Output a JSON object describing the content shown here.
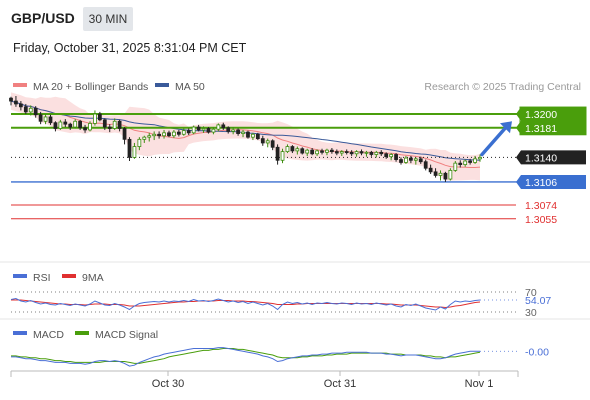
{
  "header": {
    "pair": "GBP/USD",
    "timeframe": "30 MIN",
    "datetime": "Friday, October 31, 2025 8:31:04 PM CET"
  },
  "legend": {
    "ma20_bb": "MA 20 + Bollinger Bands",
    "ma50": "MA 50",
    "credit": "Research © 2025 Trading Central"
  },
  "colors": {
    "green": "#4a9e0c",
    "blue": "#3a6fd0",
    "red": "#e03030",
    "bull": "#3d8c10",
    "bear": "#222222",
    "ma20": "#f08080",
    "ma50": "#3a5a9a",
    "band": "#fadada",
    "rsi": "#4a6fd6",
    "ma9": "#e03030",
    "macd": "#4a6fd6",
    "signal": "#4a9e0c"
  },
  "chart_data": [
    {
      "type": "candlestick",
      "title": "GBP/USD",
      "ylim": [
        1.3045,
        1.3225
      ],
      "x_ticks": [
        "Oct 30",
        "Oct 31",
        "Nov 1"
      ],
      "levels": [
        {
          "value": 1.32,
          "label": "1.3200",
          "kind": "resistance",
          "color": "#4a9e0c"
        },
        {
          "value": 1.3181,
          "label": "1.3181",
          "kind": "resistance",
          "color": "#4a9e0c"
        },
        {
          "value": 1.314,
          "label": "1.3140",
          "kind": "last-price",
          "color": "#222222"
        },
        {
          "value": 1.3106,
          "label": "1.3106",
          "kind": "pivot",
          "color": "#3a6fd0"
        },
        {
          "value": 1.3074,
          "label": "1.3074",
          "kind": "support",
          "color": "#e03030"
        },
        {
          "value": 1.3055,
          "label": "1.3055",
          "kind": "support",
          "color": "#e03030"
        }
      ],
      "arrow": {
        "from": 1.3144,
        "to": 1.319,
        "direction": "up"
      },
      "ohlc": [
        [
          1.3222,
          1.3224,
          1.3212,
          1.3218
        ],
        [
          1.3218,
          1.3225,
          1.321,
          1.3214
        ],
        [
          1.3214,
          1.3218,
          1.3205,
          1.321
        ],
        [
          1.321,
          1.3214,
          1.32,
          1.3203
        ],
        [
          1.3203,
          1.3212,
          1.3198,
          1.3208
        ],
        [
          1.3208,
          1.3211,
          1.3195,
          1.3199
        ],
        [
          1.3199,
          1.3203,
          1.3186,
          1.319
        ],
        [
          1.319,
          1.32,
          1.3186,
          1.3196
        ],
        [
          1.3196,
          1.3199,
          1.3185,
          1.3188
        ],
        [
          1.3188,
          1.319,
          1.3176,
          1.318
        ],
        [
          1.318,
          1.3192,
          1.3178,
          1.3189
        ],
        [
          1.3189,
          1.3193,
          1.3182,
          1.3186
        ],
        [
          1.3186,
          1.3188,
          1.3178,
          1.3182
        ],
        [
          1.3182,
          1.3193,
          1.318,
          1.319
        ],
        [
          1.319,
          1.3192,
          1.3178,
          1.3181
        ],
        [
          1.3181,
          1.3185,
          1.3174,
          1.3178
        ],
        [
          1.3178,
          1.319,
          1.3176,
          1.3187
        ],
        [
          1.3187,
          1.3205,
          1.3184,
          1.32
        ],
        [
          1.32,
          1.3203,
          1.319,
          1.3192
        ],
        [
          1.3192,
          1.3194,
          1.3178,
          1.3182
        ],
        [
          1.3182,
          1.3186,
          1.3175,
          1.318
        ],
        [
          1.318,
          1.3194,
          1.3178,
          1.319
        ],
        [
          1.319,
          1.3192,
          1.3176,
          1.318
        ],
        [
          1.318,
          1.3182,
          1.3158,
          1.3165
        ],
        [
          1.3165,
          1.3168,
          1.3135,
          1.314
        ],
        [
          1.314,
          1.316,
          1.3138,
          1.3155
        ],
        [
          1.3155,
          1.3168,
          1.315,
          1.3165
        ],
        [
          1.3165,
          1.317,
          1.316,
          1.3168
        ],
        [
          1.3168,
          1.3174,
          1.3162,
          1.317
        ],
        [
          1.317,
          1.3176,
          1.3164,
          1.3172
        ],
        [
          1.3172,
          1.3176,
          1.3166,
          1.317
        ],
        [
          1.317,
          1.3178,
          1.3166,
          1.3174
        ],
        [
          1.3174,
          1.3177,
          1.3168,
          1.317
        ],
        [
          1.317,
          1.3178,
          1.3167,
          1.3175
        ],
        [
          1.3175,
          1.3178,
          1.3169,
          1.3172
        ],
        [
          1.3172,
          1.318,
          1.317,
          1.3177
        ],
        [
          1.3177,
          1.318,
          1.3171,
          1.3174
        ],
        [
          1.3174,
          1.3184,
          1.3172,
          1.3182
        ],
        [
          1.3182,
          1.3185,
          1.3176,
          1.3178
        ],
        [
          1.3178,
          1.3183,
          1.3174,
          1.318
        ],
        [
          1.318,
          1.3182,
          1.3173,
          1.3175
        ],
        [
          1.3175,
          1.3182,
          1.3172,
          1.3179
        ],
        [
          1.3179,
          1.3187,
          1.3176,
          1.3185
        ],
        [
          1.3185,
          1.3188,
          1.3178,
          1.3181
        ],
        [
          1.3181,
          1.3183,
          1.3173,
          1.3176
        ],
        [
          1.3176,
          1.3182,
          1.3172,
          1.3178
        ],
        [
          1.3178,
          1.318,
          1.317,
          1.3173
        ],
        [
          1.3173,
          1.3178,
          1.3168,
          1.3175
        ],
        [
          1.3175,
          1.3177,
          1.3166,
          1.3168
        ],
        [
          1.3168,
          1.3174,
          1.3164,
          1.3172
        ],
        [
          1.3172,
          1.3174,
          1.3164,
          1.3166
        ],
        [
          1.3166,
          1.317,
          1.3156,
          1.316
        ],
        [
          1.316,
          1.3166,
          1.3154,
          1.3163
        ],
        [
          1.3163,
          1.3165,
          1.315,
          1.3154
        ],
        [
          1.3154,
          1.3158,
          1.313,
          1.3136
        ],
        [
          1.3136,
          1.3152,
          1.3132,
          1.3148
        ],
        [
          1.3148,
          1.3158,
          1.3146,
          1.3155
        ],
        [
          1.3155,
          1.3157,
          1.3146,
          1.3149
        ],
        [
          1.3149,
          1.3155,
          1.3144,
          1.3152
        ],
        [
          1.3152,
          1.3154,
          1.3144,
          1.3146
        ],
        [
          1.3146,
          1.3152,
          1.3142,
          1.315
        ],
        [
          1.315,
          1.3153,
          1.3143,
          1.3145
        ],
        [
          1.3145,
          1.3151,
          1.3142,
          1.3149
        ],
        [
          1.3149,
          1.3152,
          1.3144,
          1.3147
        ],
        [
          1.3147,
          1.3152,
          1.3143,
          1.315
        ],
        [
          1.315,
          1.3153,
          1.3145,
          1.3148
        ],
        [
          1.3148,
          1.3151,
          1.3143,
          1.3146
        ],
        [
          1.3146,
          1.315,
          1.3142,
          1.3148
        ],
        [
          1.3148,
          1.3151,
          1.3144,
          1.3147
        ],
        [
          1.3147,
          1.315,
          1.3142,
          1.3145
        ],
        [
          1.3145,
          1.315,
          1.3141,
          1.3148
        ],
        [
          1.3148,
          1.3151,
          1.3143,
          1.3146
        ],
        [
          1.3146,
          1.3149,
          1.3141,
          1.3147
        ],
        [
          1.3147,
          1.3149,
          1.3141,
          1.3144
        ],
        [
          1.3144,
          1.3149,
          1.314,
          1.3147
        ],
        [
          1.3147,
          1.315,
          1.3142,
          1.3145
        ],
        [
          1.3145,
          1.3147,
          1.3138,
          1.3141
        ],
        [
          1.3141,
          1.3146,
          1.3136,
          1.3144
        ],
        [
          1.3144,
          1.3146,
          1.3134,
          1.3137
        ],
        [
          1.3137,
          1.314,
          1.313,
          1.3133
        ],
        [
          1.3133,
          1.3142,
          1.3131,
          1.3139
        ],
        [
          1.3139,
          1.3142,
          1.3132,
          1.3136
        ],
        [
          1.3136,
          1.314,
          1.313,
          1.3138
        ],
        [
          1.3138,
          1.3141,
          1.3131,
          1.3134
        ],
        [
          1.3134,
          1.3137,
          1.3122,
          1.3125
        ],
        [
          1.3125,
          1.313,
          1.3117,
          1.312
        ],
        [
          1.312,
          1.3125,
          1.3112,
          1.3115
        ],
        [
          1.3115,
          1.3122,
          1.3108,
          1.3118
        ],
        [
          1.3118,
          1.312,
          1.3106,
          1.311
        ],
        [
          1.311,
          1.3125,
          1.3108,
          1.3122
        ],
        [
          1.3122,
          1.3135,
          1.312,
          1.3132
        ],
        [
          1.3132,
          1.3136,
          1.3126,
          1.313
        ],
        [
          1.313,
          1.3137,
          1.3127,
          1.3135
        ],
        [
          1.3135,
          1.3138,
          1.313,
          1.3133
        ],
        [
          1.3133,
          1.3142,
          1.3131,
          1.3138
        ],
        [
          1.3138,
          1.3144,
          1.3134,
          1.314
        ]
      ],
      "ma20_start": 1.3218,
      "ma20_end": 1.3135,
      "ma50_start": 1.3228,
      "ma50_end": 1.3148
    },
    {
      "type": "line",
      "title": "RSI",
      "series": [
        {
          "name": "RSI"
        },
        {
          "name": "9MA"
        }
      ],
      "levels": [
        70,
        30
      ],
      "level_labels": [
        "70",
        "30"
      ],
      "ylim": [
        20,
        80
      ],
      "last_value": 54.07,
      "last_label": "54.07",
      "rsi": [
        55,
        57,
        52,
        50,
        53,
        49,
        46,
        48,
        45,
        44,
        47,
        45,
        43,
        46,
        44,
        42,
        46,
        52,
        48,
        44,
        43,
        47,
        44,
        40,
        35,
        42,
        47,
        49,
        50,
        51,
        50,
        52,
        50,
        52,
        51,
        53,
        51,
        55,
        52,
        53,
        51,
        53,
        56,
        53,
        50,
        52,
        49,
        51,
        47,
        50,
        47,
        44,
        47,
        42,
        35,
        45,
        50,
        47,
        49,
        46,
        48,
        45,
        48,
        47,
        49,
        47,
        46,
        48,
        47,
        45,
        48,
        46,
        47,
        45,
        48,
        46,
        44,
        46,
        42,
        40,
        45,
        43,
        46,
        42,
        38,
        36,
        34,
        40,
        36,
        45,
        52,
        50,
        52,
        51,
        53,
        54.07
      ],
      "ma9": [
        54,
        54,
        54,
        53,
        52,
        51,
        50,
        49,
        48,
        47,
        46,
        46,
        45,
        45,
        45,
        44,
        45,
        46,
        46,
        46,
        45,
        45,
        45,
        44,
        42,
        42,
        42,
        43,
        44,
        45,
        46,
        47,
        48,
        49,
        50,
        50,
        51,
        51,
        52,
        52,
        52,
        52,
        53,
        53,
        53,
        52,
        52,
        52,
        51,
        51,
        50,
        49,
        48,
        47,
        45,
        45,
        45,
        45,
        46,
        46,
        47,
        47,
        47,
        47,
        47,
        47,
        47,
        47,
        47,
        47,
        47,
        47,
        47,
        47,
        47,
        47,
        46,
        46,
        45,
        44,
        44,
        44,
        44,
        43,
        42,
        41,
        40,
        40,
        39,
        40,
        42,
        43,
        45,
        47,
        49,
        50
      ]
    },
    {
      "type": "line",
      "title": "MACD",
      "series": [
        {
          "name": "MACD"
        },
        {
          "name": "MACD Signal"
        }
      ],
      "ylim": [
        -0.0018,
        0.001
      ],
      "last_label": "-0.00",
      "macd": [
        -0.0006,
        -0.0006,
        -0.0007,
        -0.0008,
        -0.0008,
        -0.0009,
        -0.001,
        -0.001,
        -0.0011,
        -0.0012,
        -0.0012,
        -0.0012,
        -0.0013,
        -0.0013,
        -0.0013,
        -0.0014,
        -0.0013,
        -0.0011,
        -0.001,
        -0.001,
        -0.0011,
        -0.001,
        -0.0011,
        -0.0013,
        -0.0016,
        -0.0015,
        -0.0012,
        -0.001,
        -0.0008,
        -0.0006,
        -0.0005,
        -0.0003,
        -0.0002,
        -0.0001,
        0.0,
        0.0001,
        0.0002,
        0.0003,
        0.0003,
        0.0003,
        0.0003,
        0.0003,
        0.0004,
        0.0004,
        0.0003,
        0.0002,
        0.0001,
        0.0,
        -0.0001,
        -0.0002,
        -0.0003,
        -0.0005,
        -0.0006,
        -0.0008,
        -0.0011,
        -0.001,
        -0.0008,
        -0.0007,
        -0.0006,
        -0.0005,
        -0.0005,
        -0.0004,
        -0.0004,
        -0.0003,
        -0.0003,
        -0.0002,
        -0.0002,
        -0.0002,
        -0.0001,
        -0.0001,
        -0.0001,
        -0.0001,
        -0.0001,
        -0.0002,
        -0.0002,
        -0.0002,
        -0.0003,
        -0.0003,
        -0.0004,
        -0.0005,
        -0.0004,
        -0.0004,
        -0.0004,
        -0.0005,
        -0.0006,
        -0.0007,
        -0.0008,
        -0.0008,
        -0.0007,
        -0.0005,
        -0.0003,
        -0.0002,
        -0.0001,
        0.0,
        0.0,
        -0.0
      ],
      "signal": [
        -0.0005,
        -0.0005,
        -0.0006,
        -0.0006,
        -0.0007,
        -0.0007,
        -0.0008,
        -0.0008,
        -0.0009,
        -0.001,
        -0.001,
        -0.0011,
        -0.0011,
        -0.0012,
        -0.0012,
        -0.0012,
        -0.0012,
        -0.0012,
        -0.0012,
        -0.0011,
        -0.0011,
        -0.0011,
        -0.0011,
        -0.0011,
        -0.0012,
        -0.0013,
        -0.0013,
        -0.0012,
        -0.0011,
        -0.001,
        -0.0009,
        -0.0008,
        -0.0006,
        -0.0005,
        -0.0004,
        -0.0003,
        -0.0002,
        -0.0001,
        0.0,
        0.0001,
        0.0001,
        0.0002,
        0.0002,
        0.0003,
        0.0003,
        0.0003,
        0.0002,
        0.0002,
        0.0001,
        0.0,
        -0.0001,
        -0.0002,
        -0.0003,
        -0.0004,
        -0.0006,
        -0.0007,
        -0.0007,
        -0.0007,
        -0.0007,
        -0.0006,
        -0.0006,
        -0.0005,
        -0.0005,
        -0.0005,
        -0.0004,
        -0.0004,
        -0.0003,
        -0.0003,
        -0.0003,
        -0.0002,
        -0.0002,
        -0.0002,
        -0.0002,
        -0.0002,
        -0.0002,
        -0.0002,
        -0.0002,
        -0.0003,
        -0.0003,
        -0.0003,
        -0.0004,
        -0.0004,
        -0.0004,
        -0.0004,
        -0.0005,
        -0.0005,
        -0.0006,
        -0.0006,
        -0.0007,
        -0.0006,
        -0.0006,
        -0.0005,
        -0.0004,
        -0.0003,
        -0.0002,
        -0.0001
      ]
    }
  ]
}
